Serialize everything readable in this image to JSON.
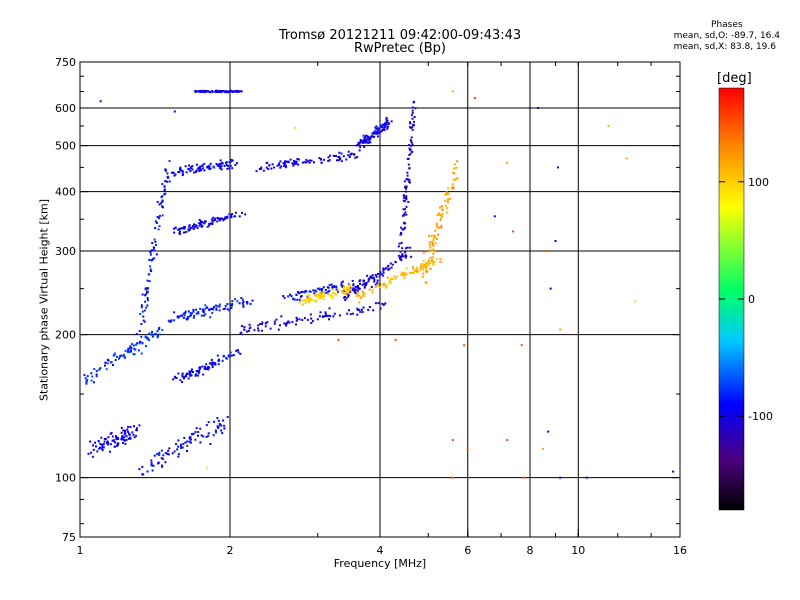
{
  "chart_data": {
    "type": "scatter",
    "title": "Tromsø 20121211 09:42:00-09:43:43",
    "subtitle": "RwPretec (Bp)",
    "stats": {
      "header": "Phases",
      "line1": "mean, sd,O: -89.7, 16.4",
      "line2": "mean, sd,X:  83.8, 19.6"
    },
    "xlabel": "Frequency [MHz]",
    "ylabel": "Stationary phase Virtual Height [km]",
    "x_scale": "log",
    "y_scale": "log",
    "xlim": [
      1,
      16
    ],
    "ylim": [
      75,
      750
    ],
    "xticks": [
      1,
      2,
      4,
      6,
      8,
      10,
      16
    ],
    "yticks": [
      75,
      100,
      200,
      300,
      400,
      500,
      600,
      750
    ],
    "x_gridlines": [
      2,
      4,
      6,
      8,
      10
    ],
    "y_gridlines": [
      100,
      200,
      300,
      400,
      500,
      600
    ],
    "grid": true,
    "colorbar": {
      "unit": "[deg]",
      "range": [
        -180,
        180
      ],
      "ticks": [
        100,
        0,
        -100
      ],
      "colors": [
        "#000000",
        "#4b0080",
        "#0000ff",
        "#00c8ff",
        "#00ff66",
        "#ffff00",
        "#ff8800",
        "#ff0000"
      ]
    },
    "traces": [
      {
        "x": [
          1.05,
          1.3
        ],
        "y": [
          115,
          125
        ],
        "phase": -95,
        "spread": [
          0.03,
          0.06
        ]
      },
      {
        "x": [
          1.35,
          1.95
        ],
        "y": [
          105,
          130
        ],
        "phase": -90,
        "spread": [
          0.04,
          0.07
        ]
      },
      {
        "x": [
          1.02,
          1.45
        ],
        "y": [
          160,
          205
        ],
        "phase": -80,
        "spread": [
          0.03,
          0.05
        ]
      },
      {
        "x": [
          1.3,
          1.5
        ],
        "y": [
          190,
          450
        ],
        "phase": -85,
        "spread": [
          0.02,
          0.07
        ]
      },
      {
        "x": [
          1.55,
          2.05
        ],
        "y": [
          440,
          460
        ],
        "phase": -95,
        "spread": [
          0.05,
          0.03
        ]
      },
      {
        "x": [
          1.7,
          2.1
        ],
        "y": [
          650,
          650
        ],
        "phase": -100,
        "spread": [
          0.02,
          0.005
        ]
      },
      {
        "x": [
          2.3,
          3.6
        ],
        "y": [
          450,
          480
        ],
        "phase": -100,
        "spread": [
          0.03,
          0.03
        ]
      },
      {
        "x": [
          3.6,
          4.2
        ],
        "y": [
          500,
          560
        ],
        "phase": -95,
        "spread": [
          0.02,
          0.04
        ]
      },
      {
        "x": [
          1.5,
          2.2
        ],
        "y": [
          215,
          235
        ],
        "phase": -85,
        "spread": [
          0.03,
          0.04
        ]
      },
      {
        "x": [
          2.1,
          4.1
        ],
        "y": [
          205,
          230
        ],
        "phase": -100,
        "spread": [
          0.02,
          0.04
        ]
      },
      {
        "x": [
          2.6,
          4.0
        ],
        "y": [
          240,
          260
        ],
        "phase": -90,
        "spread": [
          0.03,
          0.04
        ]
      },
      {
        "x": [
          3.4,
          4.6
        ],
        "y": [
          240,
          300
        ],
        "phase": -105,
        "spread": [
          0.02,
          0.04
        ]
      },
      {
        "x": [
          4.4,
          4.7
        ],
        "y": [
          300,
          620
        ],
        "phase": -110,
        "spread": [
          0.02,
          0.04
        ]
      },
      {
        "x": [
          2.8,
          3.5
        ],
        "y": [
          235,
          250
        ],
        "phase": 100,
        "spread": [
          0.02,
          0.03
        ]
      },
      {
        "x": [
          3.6,
          5.3
        ],
        "y": [
          240,
          290
        ],
        "phase": 110,
        "spread": [
          0.02,
          0.03
        ]
      },
      {
        "x": [
          4.8,
          5.7
        ],
        "y": [
          250,
          450
        ],
        "phase": 120,
        "spread": [
          0.03,
          0.05
        ]
      },
      {
        "x": [
          1.55,
          2.1
        ],
        "y": [
          330,
          360
        ],
        "phase": -95,
        "spread": [
          0.04,
          0.03
        ]
      },
      {
        "x": [
          1.55,
          2.1
        ],
        "y": [
          160,
          185
        ],
        "phase": -90,
        "spread": [
          0.04,
          0.03
        ]
      }
    ],
    "outliers": [
      [
        1.1,
        620,
        -110
      ],
      [
        1.55,
        590,
        -95
      ],
      [
        2.7,
        545,
        60
      ],
      [
        5.6,
        650,
        120
      ],
      [
        6.2,
        630,
        160
      ],
      [
        7.2,
        460,
        120
      ],
      [
        8.3,
        600,
        -110
      ],
      [
        9.1,
        450,
        -110
      ],
      [
        11.5,
        550,
        110
      ],
      [
        12.5,
        470,
        120
      ],
      [
        6.8,
        355,
        -90
      ],
      [
        7.4,
        330,
        150
      ],
      [
        9.0,
        315,
        -90
      ],
      [
        8.6,
        300,
        150
      ],
      [
        8.8,
        250,
        -90
      ],
      [
        13.0,
        235,
        60
      ],
      [
        9.2,
        205,
        120
      ],
      [
        5.9,
        190,
        150
      ],
      [
        7.7,
        190,
        150
      ],
      [
        5.6,
        120,
        150
      ],
      [
        6.0,
        115,
        150
      ],
      [
        7.2,
        120,
        150
      ],
      [
        8.5,
        115,
        120
      ],
      [
        8.7,
        125,
        -90
      ],
      [
        9.2,
        100,
        -110
      ],
      [
        10.4,
        100,
        -110
      ],
      [
        15.5,
        103,
        -110
      ],
      [
        5.6,
        100,
        150
      ],
      [
        7.8,
        100,
        150
      ],
      [
        3.3,
        195,
        150
      ],
      [
        4.3,
        195,
        150
      ],
      [
        1.8,
        105,
        60
      ]
    ]
  }
}
